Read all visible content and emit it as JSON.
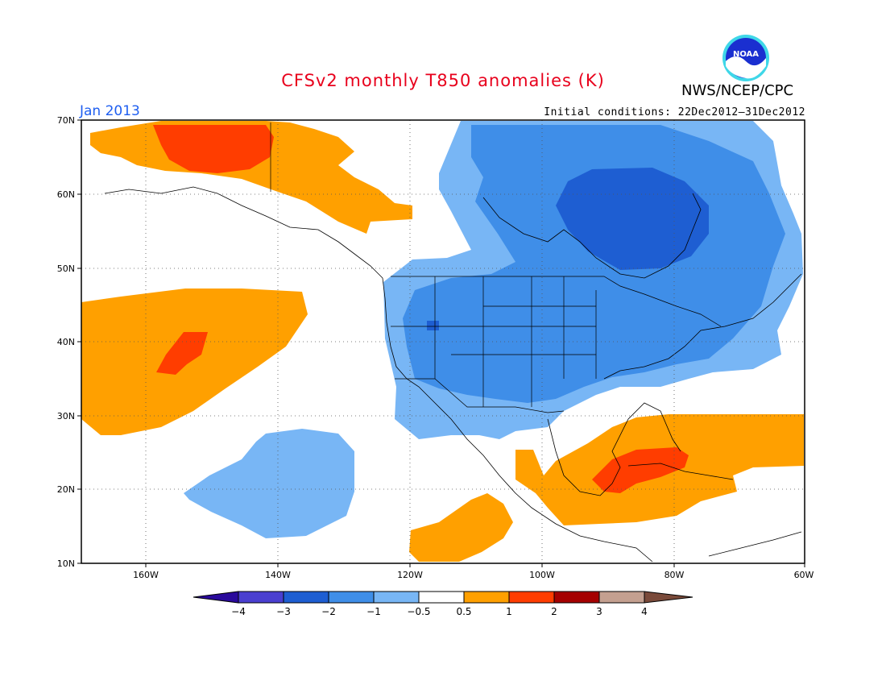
{
  "header": {
    "title": "CFSv2 monthly T850 anomalies (K)",
    "month": "Jan 2013",
    "initial_conditions": "Initial conditions: 22Dec2012–31Dec2012",
    "agency": "NWS/NCEP/CPC",
    "logo_text": "NOAA"
  },
  "axes": {
    "lat_labels": [
      "70N",
      "60N",
      "50N",
      "40N",
      "30N",
      "20N",
      "10N"
    ],
    "lon_labels": [
      "160W",
      "140W",
      "120W",
      "100W",
      "80W",
      "60W"
    ]
  },
  "colorbar": {
    "labels": [
      "−4",
      "−3",
      "−2",
      "−1",
      "−0.5",
      "0.5",
      "1",
      "2",
      "3",
      "4"
    ],
    "colors": [
      "#2a0a9c",
      "#4a3fd0",
      "#1e5ed2",
      "#3f8ee8",
      "#78b6f5",
      "#ffffff",
      "#ffa000",
      "#ff3d00",
      "#a50000",
      "#c4a090",
      "#7a4a3a"
    ]
  },
  "legend_colors": {
    "very_cold": "#1e5ed2",
    "cold": "#3f8ee8",
    "cool": "#78b6f5",
    "warm": "#ffa000",
    "hot": "#ff3d00"
  }
}
